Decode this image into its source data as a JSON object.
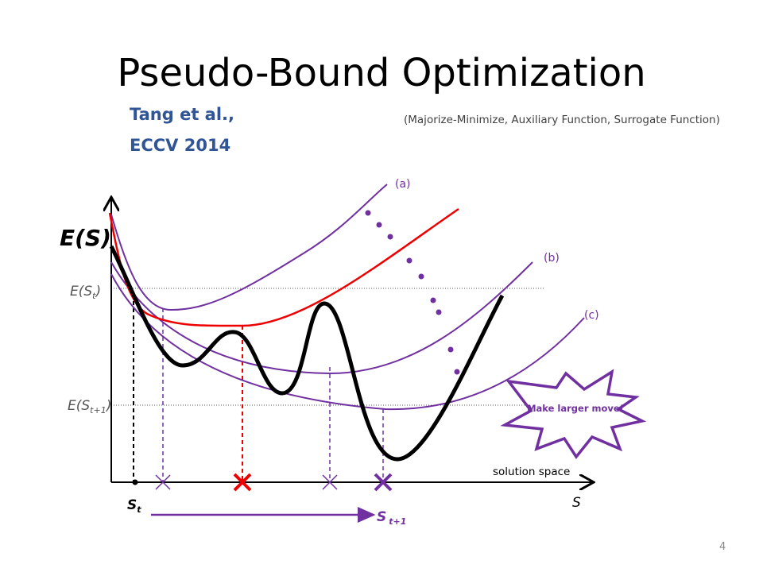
{
  "slide": {
    "title": "Pseudo-Bound Optimization",
    "author": {
      "name": "Tang et al.,",
      "venue": "ECCV 2014"
    },
    "note": "(Majorize-Minimize, Auxiliary Function, Surrogate Function)",
    "page_number": "4"
  },
  "plot": {
    "y_axis_label": "E(S)",
    "level_current": {
      "base": "E(S",
      "sub": "t",
      "close": ")"
    },
    "level_next": {
      "base": "E(S",
      "sub": "t+1",
      "close": ")"
    },
    "x_axis_caption": "solution space",
    "x_axis_label": "S",
    "point_current": {
      "base": "S",
      "sub": "t"
    },
    "point_next": {
      "base": "S",
      "sub": "t+1"
    },
    "curve_labels": [
      "(a)",
      "(b)",
      "(c)"
    ],
    "callout": "Make larger move!"
  }
}
